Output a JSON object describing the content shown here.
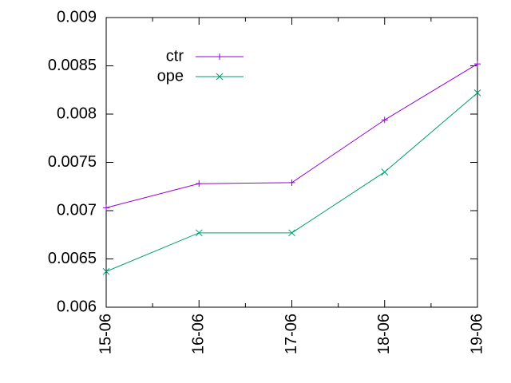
{
  "chart_data": {
    "type": "line",
    "categories": [
      "15-06",
      "16-06",
      "17-06",
      "18-06",
      "19-06"
    ],
    "series": [
      {
        "name": "ctr",
        "color": "#9400d3",
        "marker": "+",
        "values": [
          0.00703,
          0.00728,
          0.00729,
          0.00794,
          0.00852
        ]
      },
      {
        "name": "ope",
        "color": "#009e73",
        "marker": "x",
        "values": [
          0.00637,
          0.00677,
          0.00677,
          0.0074,
          0.00822
        ]
      }
    ],
    "ylim": [
      0.006,
      0.009
    ],
    "yticks": [
      0.006,
      0.0065,
      0.007,
      0.0075,
      0.008,
      0.0085,
      0.009
    ],
    "grid": false,
    "legend": "top-left"
  }
}
